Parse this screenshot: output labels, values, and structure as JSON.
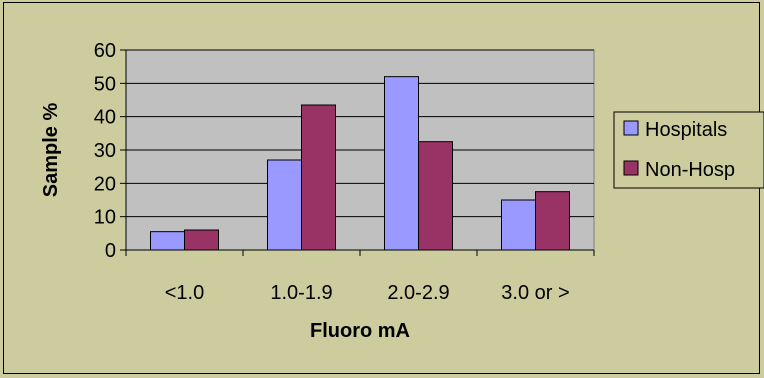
{
  "chart_data": {
    "type": "bar",
    "title": "",
    "xlabel": "Fluoro mA",
    "ylabel": "Sample %",
    "categories": [
      "<1.0",
      "1.0-1.9",
      "2.0-2.9",
      "3.0 or >"
    ],
    "ylim": [
      0,
      60
    ],
    "yticks": [
      "0",
      "10",
      "20",
      "30",
      "40",
      "50",
      "60"
    ],
    "grid": true,
    "legend_position": "right",
    "series": [
      {
        "name": "Hospitals",
        "values": [
          5.5,
          27,
          52,
          15
        ],
        "color": "#9999ff"
      },
      {
        "name": "Non-Hosp",
        "values": [
          6,
          43.5,
          32.5,
          17.5
        ],
        "color": "#993366"
      }
    ],
    "plot_background": "#c0c0c0",
    "chart_background": "#cdcc9f"
  }
}
